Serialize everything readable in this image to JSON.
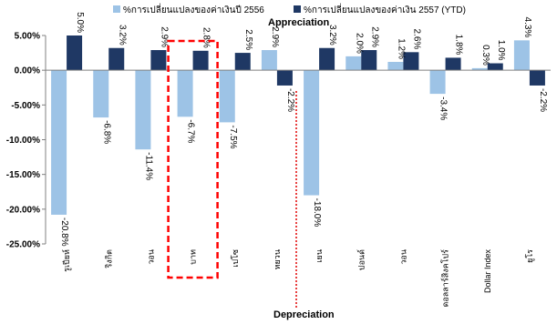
{
  "chart_data": {
    "type": "bar",
    "categories": [
      "รูเปียห์",
      "ริงกิต",
      "วอน",
      "บาท",
      "เปโซ",
      "หยวน",
      "เยน",
      "ปอนด์",
      "วอน",
      "ดอลลาร์สิงคโปร์",
      "Dollar Index",
      "ยูโร"
    ],
    "series": [
      {
        "name": "%การเปลี่ยนแปลงของค่าเงินปี 2556",
        "color": "#9DC3E6",
        "values": [
          -20.8,
          -6.8,
          -11.4,
          -6.7,
          -7.5,
          2.9,
          -18.0,
          2.0,
          1.2,
          -3.4,
          0.3,
          4.3
        ]
      },
      {
        "name": "%การเปลี่ยนแปลงของค่าเงิน 2557 (YTD)",
        "color": "#1F3864",
        "values": [
          5.0,
          3.2,
          2.9,
          2.8,
          2.5,
          -2.2,
          3.2,
          2.9,
          2.6,
          1.8,
          1.0,
          -2.2
        ]
      }
    ],
    "data_labels": [
      [
        "-20.8%",
        "-6.8%",
        "-11.4%",
        "-6.7%",
        "-7.5%",
        "2.9%",
        "-18.0%",
        "2.0%",
        "1.2%",
        "-3.4%",
        "0.3%",
        "4.3%"
      ],
      [
        "5.0%",
        "3.2%",
        "2.9%",
        "2.8%",
        "2.5%",
        "-2.2%",
        "3.2%",
        "2.9%",
        "2.6%",
        "1.8%",
        "1.0%",
        "-2.2%"
      ]
    ],
    "ylim": [
      -25,
      5
    ],
    "yticks": [
      -25,
      -20,
      -15,
      -10,
      -5,
      0,
      5
    ],
    "ytick_labels": [
      "-25.00%",
      "-20.00%",
      "-15.00%",
      "-10.00%",
      "-5.00%",
      "0.00%",
      "5.00%"
    ],
    "legend_position": "top",
    "annotations": {
      "appreciation": "Appreciation",
      "depreciation": "Depreciation"
    },
    "highlight_category": "บาท",
    "highlight_color": "#FF0000"
  }
}
